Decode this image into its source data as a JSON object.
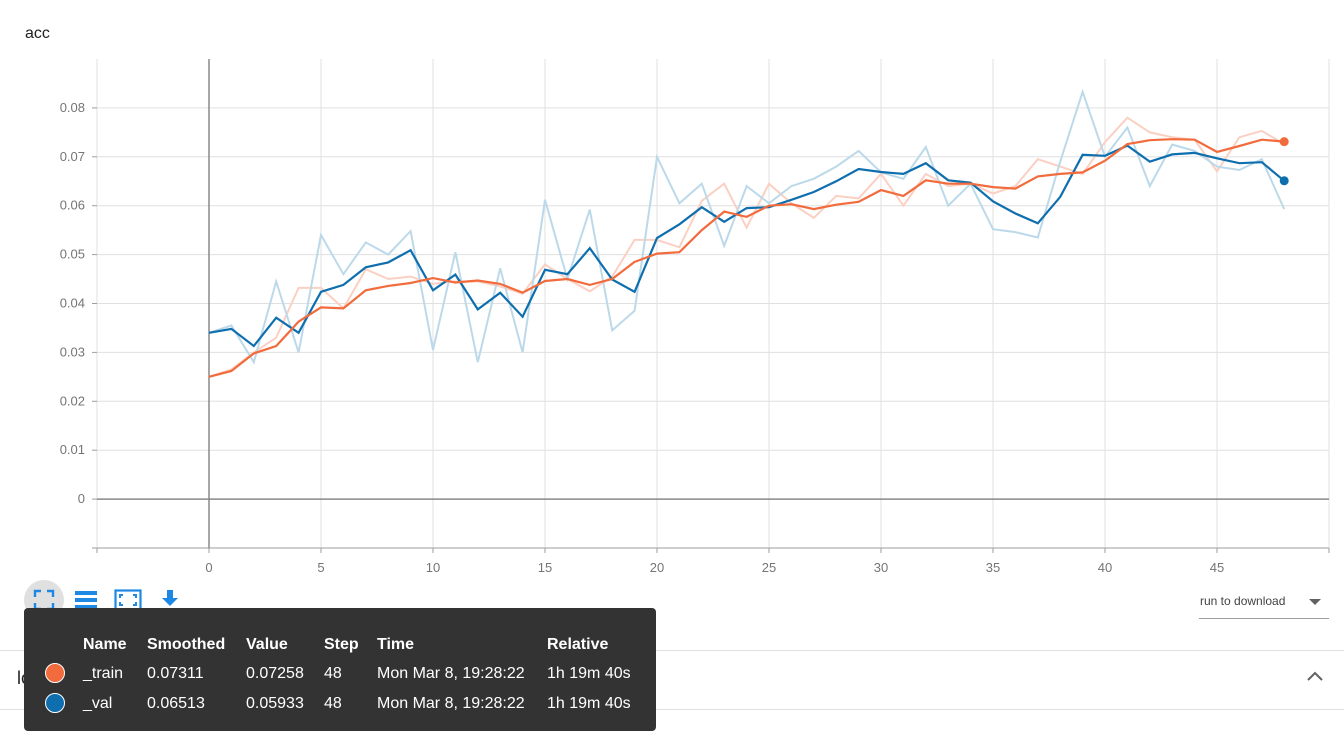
{
  "panel": {
    "title": "acc",
    "next_section": "loss"
  },
  "toolbar": {
    "buttons": [
      "fit-domain",
      "toggle-log",
      "toggle-y-axis",
      "download-data"
    ]
  },
  "run_select": {
    "label": "run to download"
  },
  "colors": {
    "train": "#f26b3d",
    "train_raw": "#fbd0c2",
    "val": "#0f6fae",
    "val_raw": "#bcd9ea",
    "grid": "#e0e0e0",
    "axis": "#9e9e9e",
    "tooltip_bg": "#333333"
  },
  "tooltip": {
    "headers": [
      "Name",
      "Smoothed",
      "Value",
      "Step",
      "Time",
      "Relative"
    ],
    "rows": [
      {
        "name": "_train",
        "smoothed": "0.07311",
        "value": "0.07258",
        "step": "48",
        "time": "Mon Mar 8, 19:28:22",
        "relative": "1h 19m 40s",
        "color": "#f26b3d"
      },
      {
        "name": "_val",
        "smoothed": "0.06513",
        "value": "0.05933",
        "step": "48",
        "time": "Mon Mar 8, 19:28:22",
        "relative": "1h 19m 40s",
        "color": "#0f6fae"
      }
    ]
  },
  "chart_data": {
    "type": "line",
    "title": "acc",
    "xlim": [
      -5,
      50
    ],
    "ylim": [
      -0.01,
      0.09
    ],
    "x_ticks": [
      0,
      5,
      10,
      15,
      20,
      25,
      30,
      35,
      40,
      45
    ],
    "y_ticks": [
      0,
      0.01,
      0.02,
      0.03,
      0.04,
      0.05,
      0.06,
      0.07,
      0.08
    ],
    "y_tick_labels": [
      "0",
      "0.01",
      "0.02",
      "0.03",
      "0.04",
      "0.05",
      "0.06",
      "0.07",
      "0.08"
    ],
    "grid": true,
    "x": [
      0,
      1,
      2,
      3,
      4,
      5,
      6,
      7,
      8,
      9,
      10,
      11,
      12,
      13,
      14,
      15,
      16,
      17,
      18,
      19,
      20,
      21,
      22,
      23,
      24,
      25,
      26,
      27,
      28,
      29,
      30,
      31,
      32,
      33,
      34,
      35,
      36,
      37,
      38,
      39,
      40,
      41,
      42,
      43,
      44,
      45,
      46,
      47,
      48
    ],
    "series": [
      {
        "name": "_train",
        "smoothed": [
          0.025,
          0.0262,
          0.0298,
          0.0313,
          0.0363,
          0.0392,
          0.039,
          0.0427,
          0.0436,
          0.0442,
          0.0452,
          0.0443,
          0.0447,
          0.044,
          0.0422,
          0.0446,
          0.045,
          0.0438,
          0.045,
          0.0485,
          0.0502,
          0.0505,
          0.055,
          0.0588,
          0.0577,
          0.06,
          0.0603,
          0.0593,
          0.0602,
          0.0608,
          0.0632,
          0.062,
          0.0652,
          0.0645,
          0.0645,
          0.0638,
          0.0635,
          0.066,
          0.0665,
          0.0668,
          0.0692,
          0.0726,
          0.0734,
          0.0736,
          0.0735,
          0.071,
          0.0722,
          0.0735,
          0.0731
        ],
        "raw": [
          0.025,
          0.0265,
          0.03,
          0.033,
          0.0432,
          0.0432,
          0.039,
          0.047,
          0.045,
          0.0455,
          0.044,
          0.0445,
          0.0445,
          0.0435,
          0.042,
          0.048,
          0.045,
          0.0425,
          0.0455,
          0.053,
          0.053,
          0.0515,
          0.061,
          0.0645,
          0.0555,
          0.0645,
          0.0605,
          0.0575,
          0.062,
          0.0615,
          0.0665,
          0.06,
          0.0665,
          0.064,
          0.0645,
          0.0625,
          0.064,
          0.0695,
          0.068,
          0.0665,
          0.073,
          0.078,
          0.075,
          0.074,
          0.0735,
          0.067,
          0.074,
          0.0753,
          0.0726
        ]
      },
      {
        "name": "_val",
        "smoothed": [
          0.034,
          0.0348,
          0.0313,
          0.0371,
          0.034,
          0.0424,
          0.0438,
          0.0474,
          0.0484,
          0.0509,
          0.0427,
          0.0459,
          0.0388,
          0.0422,
          0.0373,
          0.0469,
          0.046,
          0.0513,
          0.0449,
          0.0424,
          0.0534,
          0.0562,
          0.0597,
          0.0567,
          0.0595,
          0.0597,
          0.0612,
          0.0628,
          0.065,
          0.0675,
          0.0669,
          0.0665,
          0.0687,
          0.0652,
          0.0647,
          0.0609,
          0.0584,
          0.0564,
          0.0618,
          0.0704,
          0.0702,
          0.0723,
          0.069,
          0.0705,
          0.0708,
          0.0697,
          0.0687,
          0.0689,
          0.0651
        ],
        "raw": [
          0.034,
          0.0355,
          0.028,
          0.0445,
          0.03,
          0.054,
          0.046,
          0.0525,
          0.05,
          0.0548,
          0.0305,
          0.0505,
          0.028,
          0.0472,
          0.03,
          0.0612,
          0.045,
          0.0592,
          0.0345,
          0.0385,
          0.07,
          0.0605,
          0.0645,
          0.0518,
          0.064,
          0.0605,
          0.064,
          0.0655,
          0.068,
          0.0712,
          0.0668,
          0.0655,
          0.072,
          0.06,
          0.0645,
          0.0552,
          0.0546,
          0.0535,
          0.069,
          0.0833,
          0.07,
          0.076,
          0.064,
          0.0725,
          0.0712,
          0.068,
          0.0673,
          0.0695,
          0.0593
        ]
      }
    ]
  }
}
